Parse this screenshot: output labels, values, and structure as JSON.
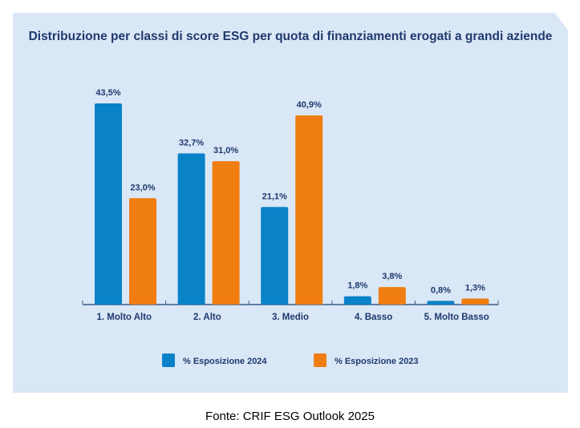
{
  "chart_data": {
    "type": "bar",
    "title": "Distribuzione per classi di score ESG per quota di finanziamenti erogati a grandi aziende",
    "categories": [
      "1. Molto Alto",
      "2. Alto",
      "3. Medio",
      "4. Basso",
      "5. Molto Basso"
    ],
    "series": [
      {
        "name": "% Esposizione 2024",
        "values": [
          43.5,
          32.7,
          21.1,
          1.8,
          0.8
        ],
        "labels": [
          "43,5%",
          "32,7%",
          "21,1%",
          "1,8%",
          "0,8%"
        ],
        "color": "#0a82c8"
      },
      {
        "name": "% Esposizione 2023",
        "values": [
          23.0,
          31.0,
          40.9,
          3.8,
          1.3
        ],
        "labels": [
          "23,0%",
          "31,0%",
          "40,9%",
          "3,8%",
          "1,3%"
        ],
        "color": "#f07d12"
      }
    ],
    "ylim": [
      0,
      45
    ],
    "grid": false,
    "legend": "bottom",
    "text_color": "#1f3a6e",
    "background": "#dae7f6"
  },
  "source": "Fonte: CRIF ESG Outlook 2025"
}
